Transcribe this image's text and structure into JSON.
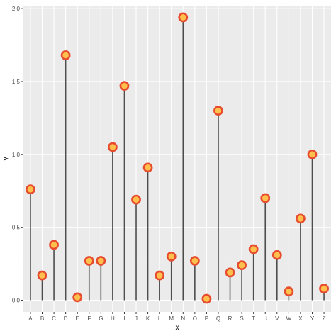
{
  "chart_data": {
    "type": "lollipop",
    "xlabel": "x",
    "ylabel": "y",
    "ylim": [
      -0.08,
      2.02
    ],
    "y_ticks": [
      "0.0",
      "0.5",
      "1.0",
      "1.5",
      "2.0"
    ],
    "y_tick_values": [
      0,
      0.5,
      1.0,
      1.5,
      2.0
    ],
    "grid": true,
    "categories": [
      "A",
      "B",
      "C",
      "D",
      "E",
      "F",
      "G",
      "H",
      "I",
      "J",
      "K",
      "L",
      "M",
      "N",
      "O",
      "P",
      "Q",
      "R",
      "S",
      "T",
      "U",
      "V",
      "W",
      "X",
      "Y",
      "Z"
    ],
    "values": [
      0.76,
      0.17,
      0.38,
      1.68,
      0.02,
      0.27,
      0.27,
      1.05,
      1.47,
      0.69,
      0.91,
      0.17,
      0.3,
      1.94,
      0.27,
      0.01,
      1.3,
      0.19,
      0.24,
      0.35,
      0.7,
      0.31,
      0.06,
      0.56,
      1.0,
      0.08
    ],
    "colors": {
      "panel_background": "#ebebeb",
      "grid_major": "#ffffff",
      "grid_minor": "#f5f5f5",
      "stem": "#4d4d4d",
      "point_fill": "#ffc04d",
      "point_stroke": "#e74c2e",
      "tick_text": "#4d4d4d",
      "title_text": "#000000"
    }
  }
}
